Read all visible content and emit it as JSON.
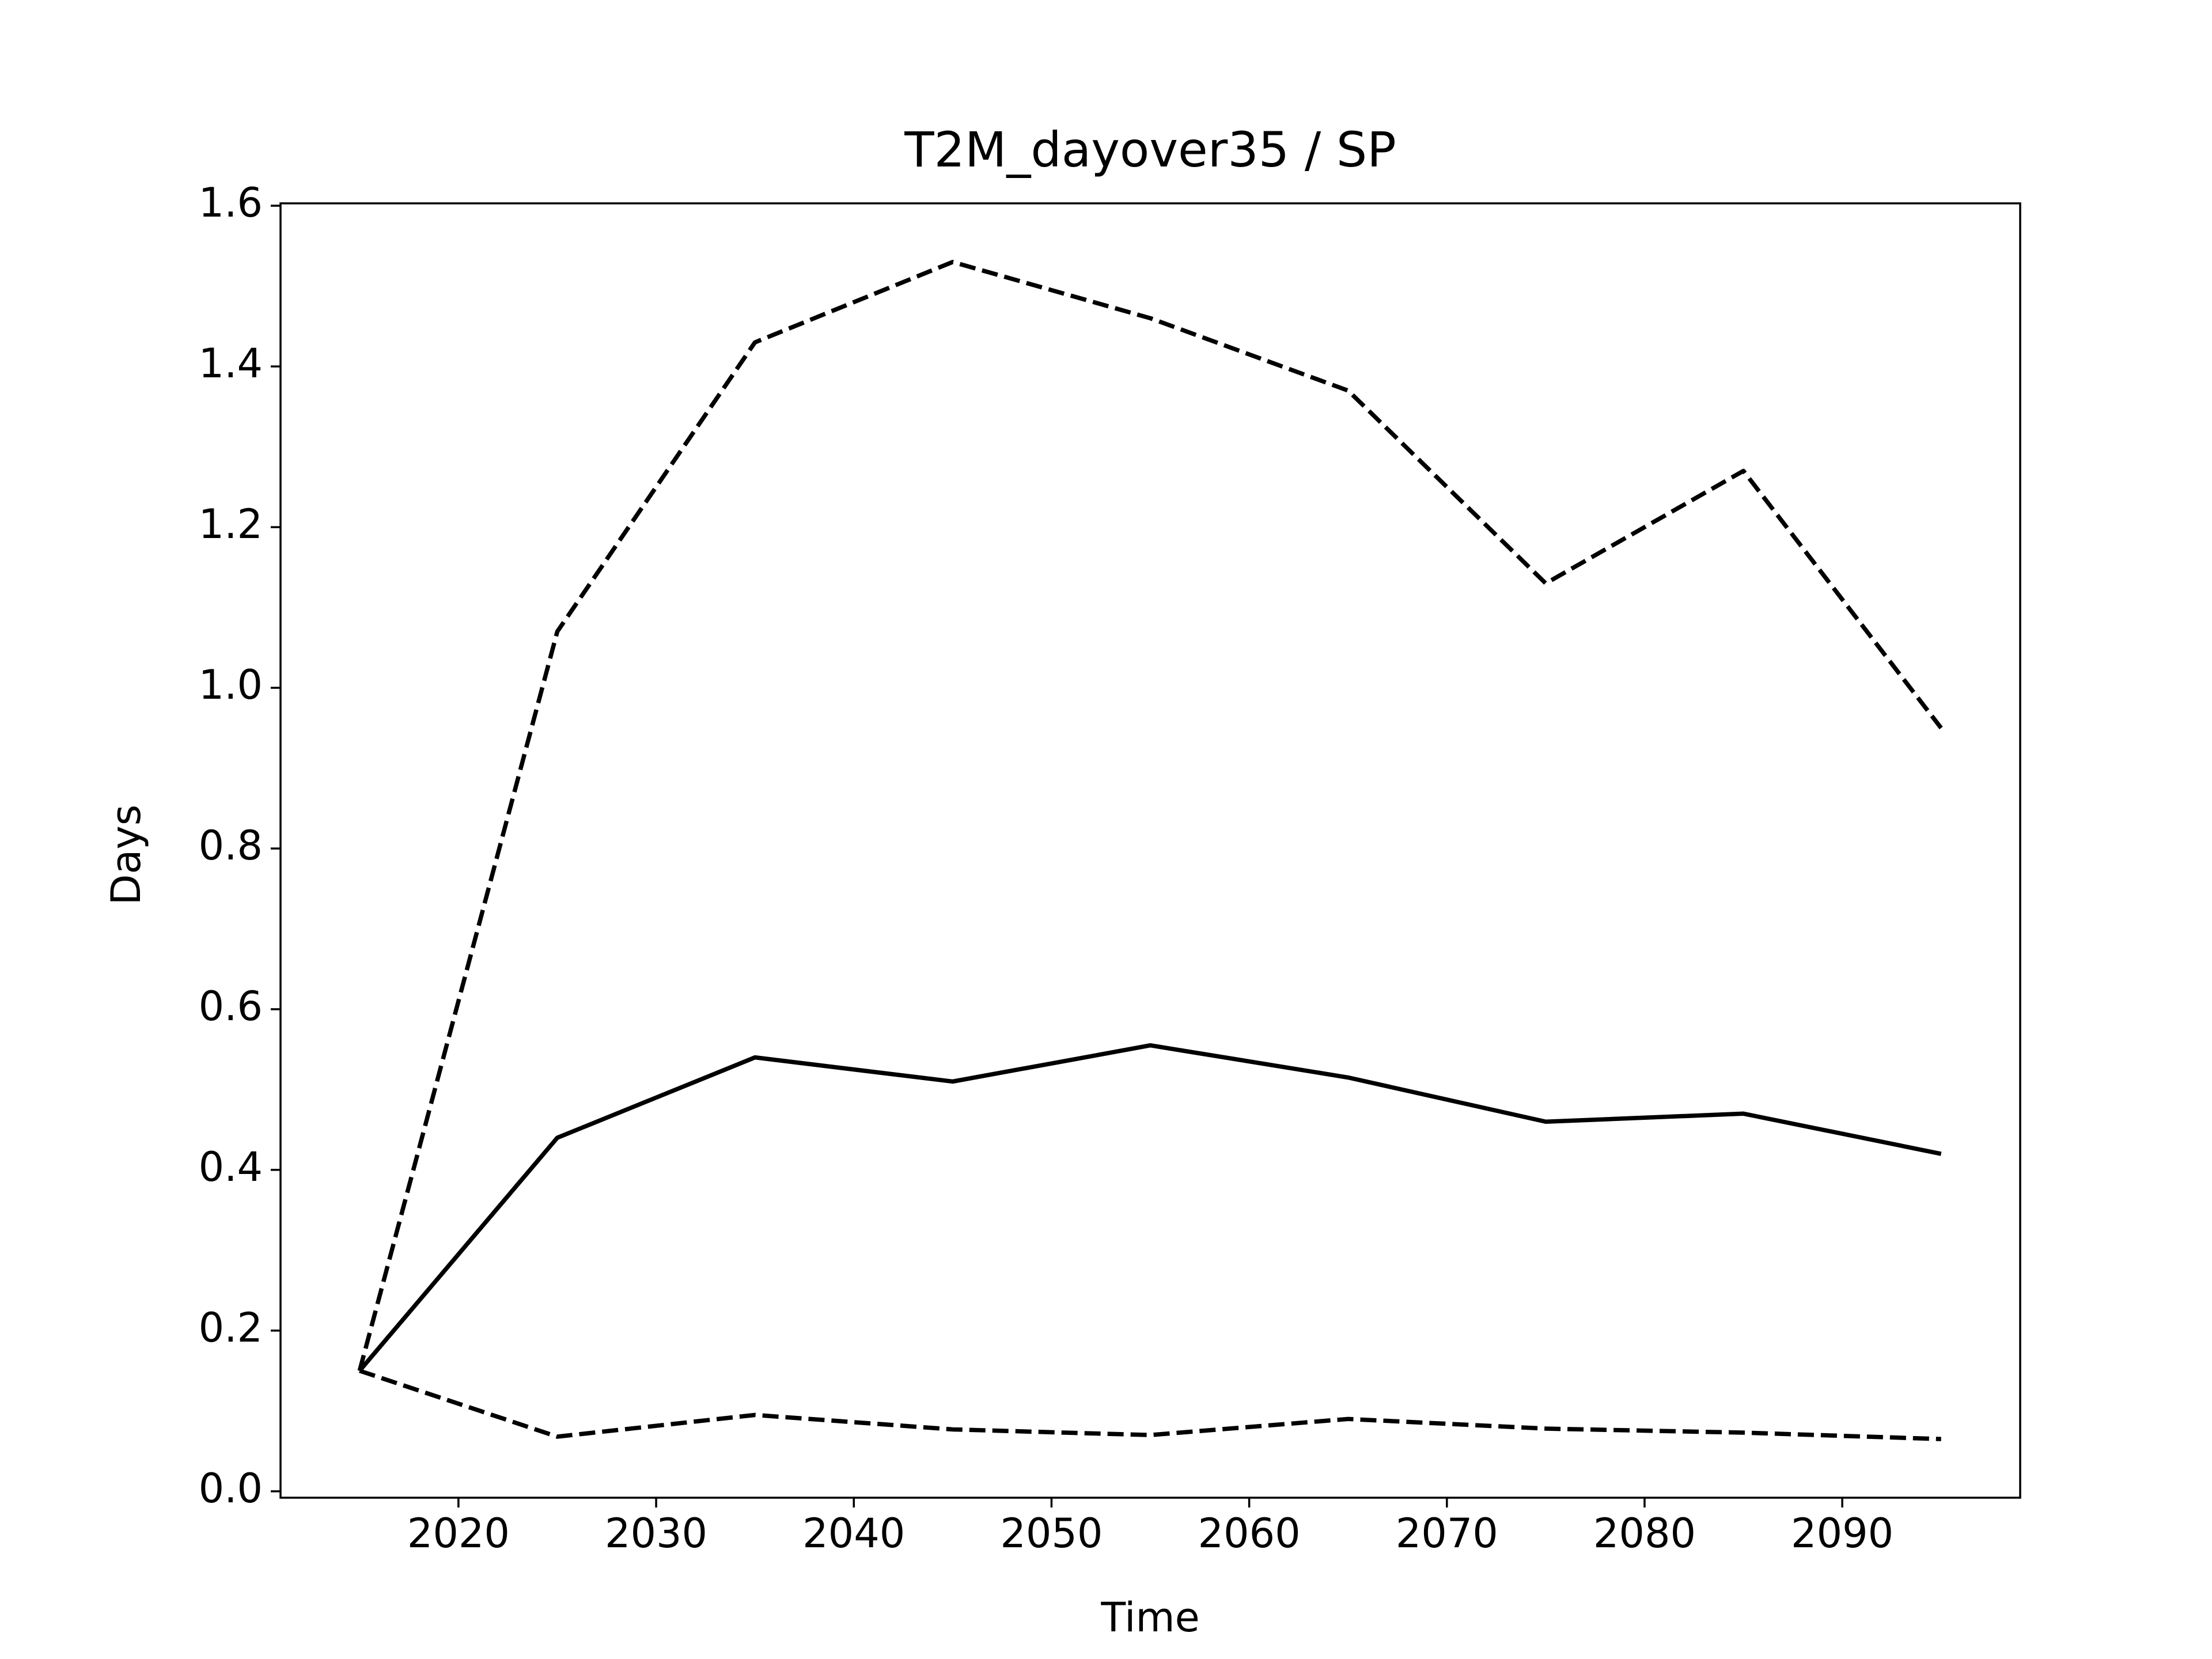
{
  "chart_data": {
    "type": "line",
    "title": "T2M_dayover35 / SP",
    "xlabel": "Time",
    "ylabel": "Days",
    "x": [
      2015,
      2025,
      2035,
      2045,
      2055,
      2065,
      2075,
      2085,
      2095
    ],
    "series": [
      {
        "color": "#000000",
        "linestyle": "solid",
        "values": [
          0.15,
          0.44,
          0.54,
          0.51,
          0.555,
          0.515,
          0.46,
          0.47,
          0.42
        ]
      },
      {
        "color": "#000000",
        "linestyle": "dashed",
        "values": [
          0.15,
          1.07,
          1.43,
          1.53,
          1.46,
          1.37,
          1.13,
          1.27,
          0.95
        ]
      },
      {
        "color": "#000000",
        "linestyle": "dashed",
        "values": [
          0.15,
          0.068,
          0.095,
          0.077,
          0.07,
          0.09,
          0.078,
          0.073,
          0.065
        ]
      }
    ],
    "xlim": [
      2011,
      2099
    ],
    "xticks": [
      2020,
      2030,
      2040,
      2050,
      2060,
      2070,
      2080,
      2090
    ],
    "ylim": [
      -0.008,
      1.603
    ],
    "yticks": [
      {
        "value": 0,
        "label": "0.0"
      },
      0.2,
      0.4,
      0.6,
      0.8,
      {
        "value": 1,
        "label": "1.0"
      },
      1.2,
      1.4,
      1.6
    ],
    "grid": false
  }
}
